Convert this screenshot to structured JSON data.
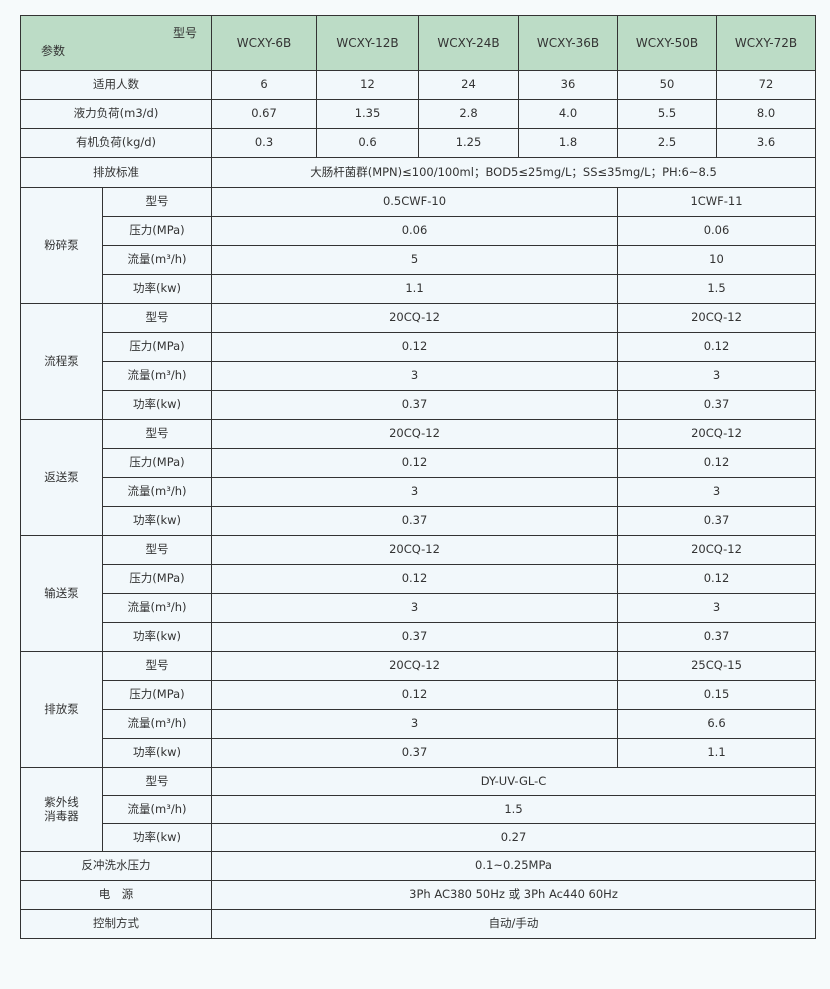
{
  "header": {
    "model_label": "型号",
    "param_label": "参数",
    "models": [
      "WCXY-6B",
      "WCXY-12B",
      "WCXY-24B",
      "WCXY-36B",
      "WCXY-50B",
      "WCXY-72B"
    ]
  },
  "rows": [
    {
      "label": "适用人数",
      "values": [
        "6",
        "12",
        "24",
        "36",
        "50",
        "72"
      ]
    },
    {
      "label": "液力负荷(m3/d)",
      "values": [
        "0.67",
        "1.35",
        "2.8",
        "4.0",
        "5.5",
        "8.0"
      ]
    },
    {
      "label": "有机负荷(kg/d)",
      "values": [
        "0.3",
        "0.6",
        "1.25",
        "1.8",
        "2.5",
        "3.6"
      ]
    }
  ],
  "discharge": {
    "label": "排放标准",
    "value": "大肠杆菌群(MPN)≤100/100ml；BOD5≤25mg/L；SS≤35mg/L；PH:6~8.5"
  },
  "pumps": [
    {
      "name": "粉碎泵",
      "rows": [
        [
          "型号",
          "0.5CWF-10",
          "1CWF-11"
        ],
        [
          "压力(MPa)",
          "0.06",
          "0.06"
        ],
        [
          "流量(m³/h)",
          "5",
          "10"
        ],
        [
          "功率(kw)",
          "1.1",
          "1.5"
        ]
      ]
    },
    {
      "name": "流程泵",
      "rows": [
        [
          "型号",
          "20CQ-12",
          "20CQ-12"
        ],
        [
          "压力(MPa)",
          "0.12",
          "0.12"
        ],
        [
          "流量(m³/h)",
          "3",
          "3"
        ],
        [
          "功率(kw)",
          "0.37",
          "0.37"
        ]
      ]
    },
    {
      "name": "返送泵",
      "rows": [
        [
          "型号",
          "20CQ-12",
          "20CQ-12"
        ],
        [
          "压力(MPa)",
          "0.12",
          "0.12"
        ],
        [
          "流量(m³/h)",
          "3",
          "3"
        ],
        [
          "功率(kw)",
          "0.37",
          "0.37"
        ]
      ]
    },
    {
      "name": "输送泵",
      "rows": [
        [
          "型号",
          "20CQ-12",
          "20CQ-12"
        ],
        [
          "压力(MPa)",
          "0.12",
          "0.12"
        ],
        [
          "流量(m³/h)",
          "3",
          "3"
        ],
        [
          "功率(kw)",
          "0.37",
          "0.37"
        ]
      ]
    },
    {
      "name": "排放泵",
      "rows": [
        [
          "型号",
          "20CQ-12",
          "25CQ-15"
        ],
        [
          "压力(MPa)",
          "0.12",
          "0.15"
        ],
        [
          "流量(m³/h)",
          "3",
          "6.6"
        ],
        [
          "功率(kw)",
          "0.37",
          "1.1"
        ]
      ]
    }
  ],
  "uv": {
    "name": "紫外线\n消毒器",
    "rows": [
      [
        "型号",
        "DY-UV-GL-C"
      ],
      [
        "流量(m³/h)",
        "1.5"
      ],
      [
        "功率(kw)",
        "0.27"
      ]
    ]
  },
  "footer": [
    {
      "label": "反冲洗水压力",
      "value": "0.1~0.25MPa"
    },
    {
      "label": "电　源",
      "value": "3Ph AC380 50Hz 或 3Ph Ac440 60Hz"
    },
    {
      "label": "控制方式",
      "value": "自动/手动"
    }
  ]
}
